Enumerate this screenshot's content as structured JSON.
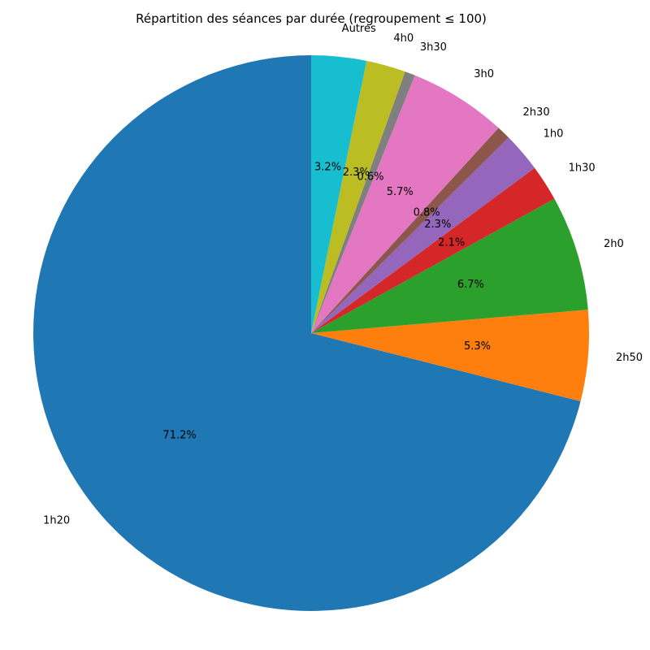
{
  "chart_data": {
    "type": "pie",
    "title": "Répartition des séances par durée (regroupement ≤ 100)",
    "start_angle_deg": 90,
    "direction": "counterclockwise",
    "slices": [
      {
        "label": "1h20",
        "value": 71.2,
        "pct_label": "71.2%",
        "color": "#1f77b4"
      },
      {
        "label": "2h50",
        "value": 5.3,
        "pct_label": "5.3%",
        "color": "#ff7f0e"
      },
      {
        "label": "2h0",
        "value": 6.7,
        "pct_label": "6.7%",
        "color": "#2ca02c"
      },
      {
        "label": "1h30",
        "value": 2.1,
        "pct_label": "2.1%",
        "color": "#d62728"
      },
      {
        "label": "1h0",
        "value": 2.3,
        "pct_label": "2.3%",
        "color": "#9467bd"
      },
      {
        "label": "2h30",
        "value": 0.8,
        "pct_label": "0.8%",
        "color": "#8c564b"
      },
      {
        "label": "3h0",
        "value": 5.7,
        "pct_label": "5.7%",
        "color": "#e377c2"
      },
      {
        "label": "3h30",
        "value": 0.6,
        "pct_label": "0.6%",
        "color": "#7f7f7f"
      },
      {
        "label": "4h0",
        "value": 2.3,
        "pct_label": "2.3%",
        "color": "#bcbd22"
      },
      {
        "label": "Autres",
        "value": 3.2,
        "pct_label": "3.2%",
        "color": "#17becf"
      }
    ]
  }
}
